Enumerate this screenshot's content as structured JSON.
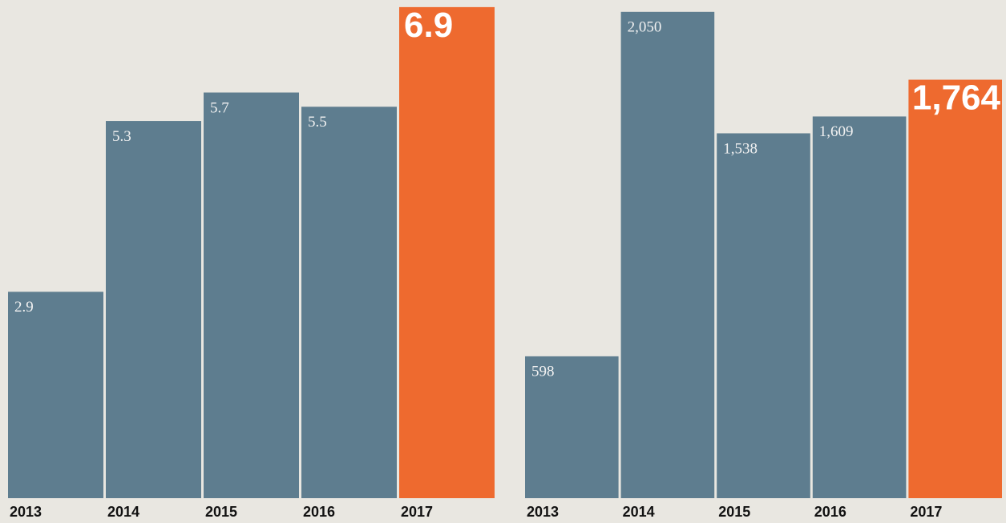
{
  "chart_data": [
    {
      "type": "bar",
      "categories": [
        "2013",
        "2014",
        "2015",
        "2016",
        "2017"
      ],
      "values": [
        2.9,
        5.3,
        5.7,
        5.5,
        6.9
      ],
      "colors": [
        "#5e7d8f",
        "#5e7d8f",
        "#5e7d8f",
        "#5e7d8f",
        "#ee6a2f"
      ],
      "ylim": [
        0,
        7
      ]
    },
    {
      "type": "bar",
      "categories": [
        "2013",
        "2014",
        "2015",
        "2016",
        "2017"
      ],
      "values": [
        598,
        2050,
        1538,
        1609,
        1764
      ],
      "value_labels": [
        "598",
        "2,050",
        "1,538",
        "1,609",
        "1,764"
      ],
      "colors": [
        "#5e7d8f",
        "#5e7d8f",
        "#5e7d8f",
        "#5e7d8f",
        "#ee6a2f"
      ],
      "ylim": [
        0,
        2100
      ]
    }
  ]
}
